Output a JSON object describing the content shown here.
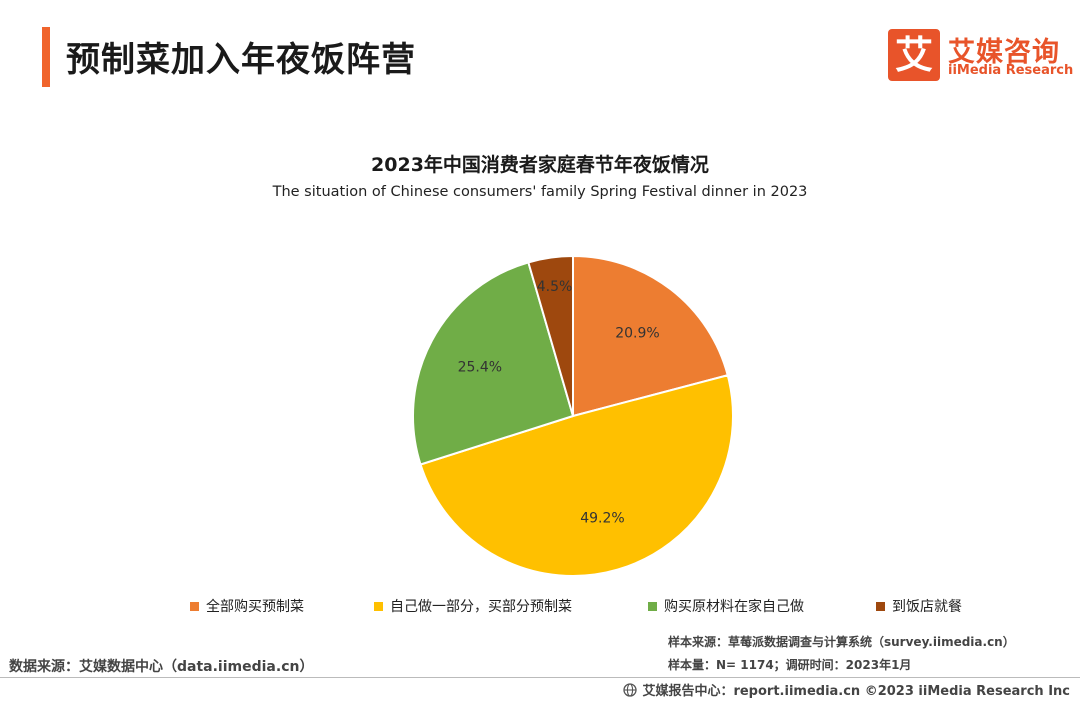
{
  "header": {
    "title": "预制菜加入年夜饭阵营",
    "brand_mark": "艾",
    "brand_name": "艾媒咨询",
    "brand_sub": "iiMedia Research"
  },
  "chart_data": {
    "type": "pie",
    "title": "2023年中国消费者家庭春节年夜饭情况",
    "subtitle": "The situation of Chinese consumers' family Spring Festival dinner in 2023",
    "start_angle_deg": 0,
    "direction": "clockwise",
    "slices": [
      {
        "label": "全部购买预制菜",
        "value": 20.9,
        "display": "20.9%",
        "color": "#ed7d31"
      },
      {
        "label": "自己做一部分，买部分预制菜",
        "value": 49.2,
        "display": "49.2%",
        "color": "#ffc000"
      },
      {
        "label": "购买原材料在家自己做",
        "value": 25.4,
        "display": "25.4%",
        "color": "#70ad47"
      },
      {
        "label": "到饭店就餐",
        "value": 4.5,
        "display": "4.5%",
        "color": "#9e480e"
      }
    ],
    "legend_position": "bottom"
  },
  "footer": {
    "source": "数据来源：艾媒数据中心（data.iimedia.cn）",
    "sample_source": "样本来源：草莓派数据调查与计算系统（survey.iimedia.cn）",
    "sample_size": "样本量：N= 1174；调研时间：2023年1月",
    "copyright": "艾媒报告中心：report.iimedia.cn   ©2023  iiMedia Research  Inc"
  }
}
